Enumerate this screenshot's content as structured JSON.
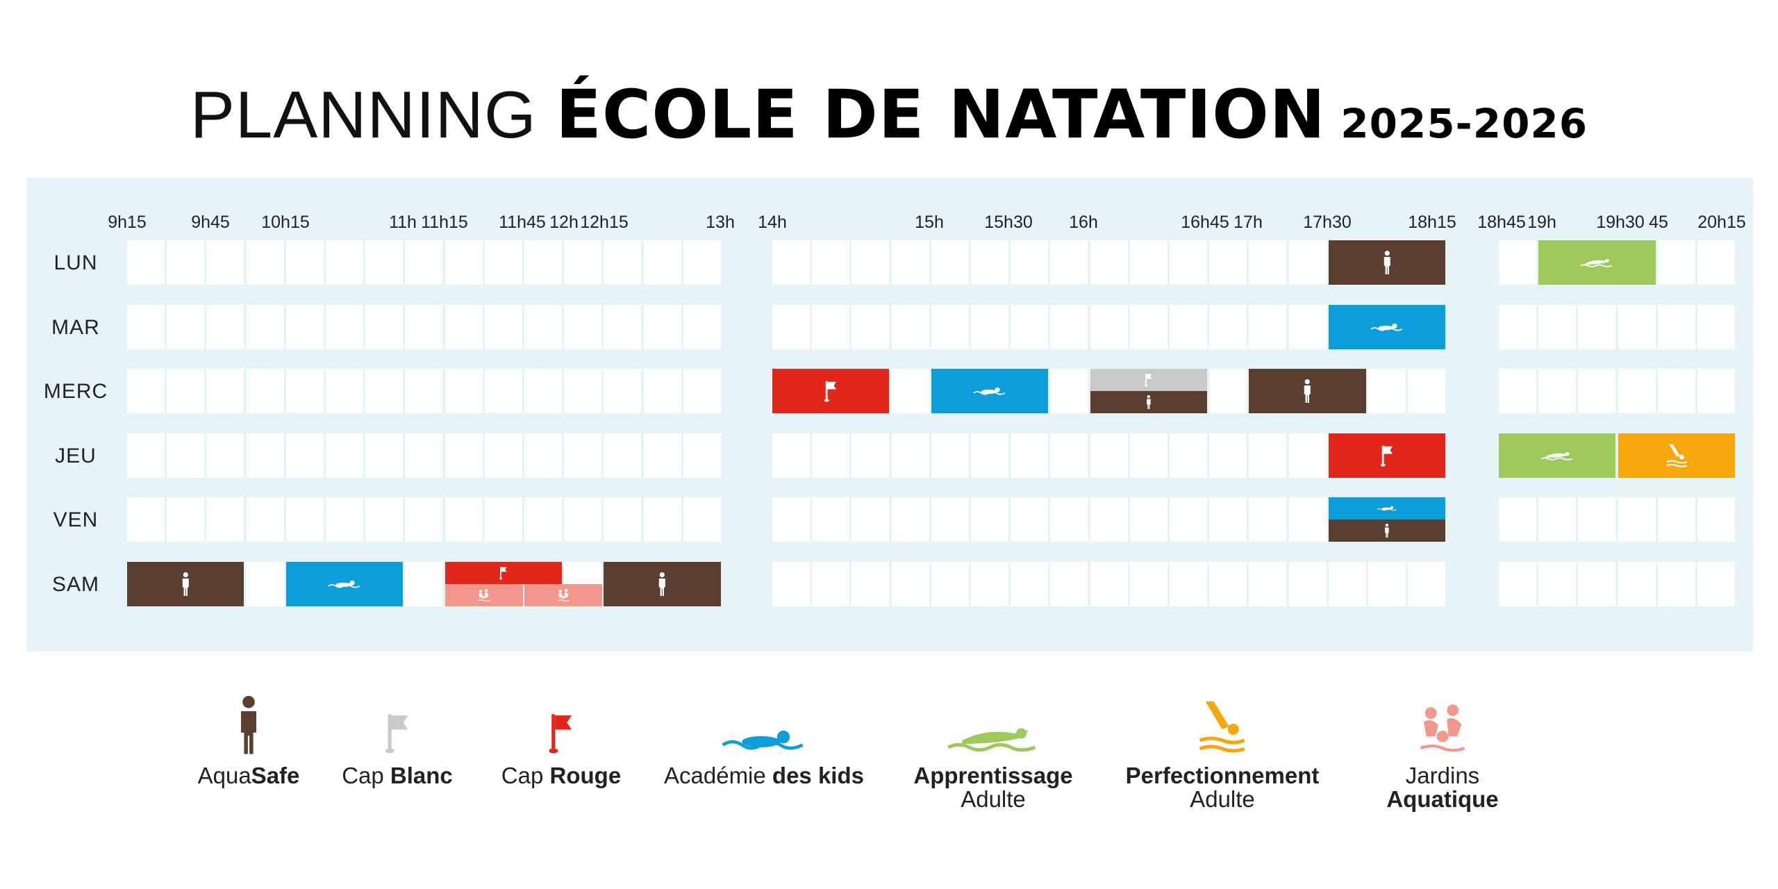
{
  "title": {
    "part1": "PLANNING ",
    "part2": "ÉCOLE DE NATATION",
    "part3": " 2025-2026"
  },
  "time_labels": [
    "9h15",
    "9h45",
    "10h15",
    "11h",
    "11h15",
    "11h45",
    "12h",
    "12h15",
    "13h",
    "14h",
    "15h",
    "15h30",
    "16h",
    "16h45",
    "17h",
    "17h30",
    "18h15",
    "18h45",
    "19h",
    "19h30",
    "45",
    "20h15"
  ],
  "days": [
    "LUN",
    "MAR",
    "MERC",
    "JEU",
    "VEN",
    "SAM"
  ],
  "colors": {
    "aquasafe": "#5a3e2f",
    "cap_blanc": "#c9c9c9",
    "cap_rouge": "#e1261c",
    "academie": "#0e9ddb",
    "apprentissage": "#9dc85a",
    "perfectionnement": "#f5a70b",
    "jardins": "#f3978d"
  },
  "legend": [
    {
      "light": "Aqua",
      "bold": "Safe",
      "icon": "person-icon"
    },
    {
      "light": "Cap ",
      "bold": "Blanc",
      "icon": "white-flag-icon"
    },
    {
      "light": "Cap ",
      "bold": "Rouge",
      "icon": "red-flag-icon"
    },
    {
      "light": "Académie ",
      "bold": "des kids",
      "icon": "kid-swimmer-icon"
    },
    {
      "bold": "Apprentissage",
      "light": "Adulte",
      "icon": "adult-swimmer-icon"
    },
    {
      "bold": "Perfectionnement",
      "light": "Adulte",
      "icon": "diver-icon"
    },
    {
      "light": "Jardins",
      "bold": "Aquatique",
      "icon": "aquatic-garden-icon"
    }
  ]
}
